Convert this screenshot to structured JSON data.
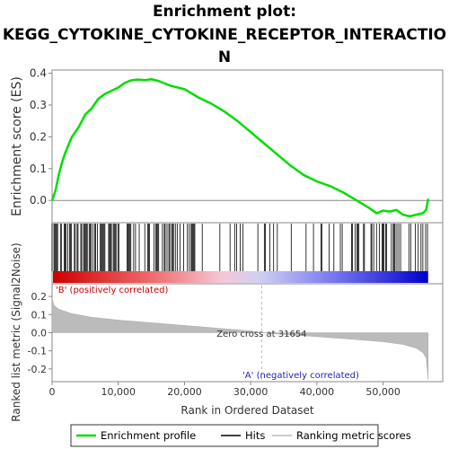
{
  "title_lines": [
    "Enrichment plot:",
    "KEGG_CYTOKINE_CYTOKINE_RECEPTOR_INTERACTIO",
    "N"
  ],
  "chart_data": {
    "type": "line",
    "series": [
      {
        "name": "Enrichment profile",
        "color": "#00dd00",
        "x": [
          0,
          500,
          1000,
          1500,
          2000,
          3000,
          4000,
          5000,
          6000,
          7000,
          8000,
          9000,
          10000,
          11000,
          12000,
          13000,
          14000,
          15000,
          16000,
          17000,
          18000,
          20000,
          22000,
          24000,
          26000,
          28000,
          30000,
          32000,
          34000,
          36000,
          38000,
          40000,
          42000,
          44000,
          46000,
          48000,
          49000,
          50000,
          51000,
          52000,
          53000,
          54000,
          55000,
          56000,
          56500,
          56800
        ],
        "y": [
          0.0,
          0.03,
          0.08,
          0.12,
          0.15,
          0.2,
          0.23,
          0.27,
          0.29,
          0.32,
          0.335,
          0.345,
          0.355,
          0.37,
          0.378,
          0.38,
          0.378,
          0.381,
          0.376,
          0.368,
          0.36,
          0.35,
          0.325,
          0.305,
          0.28,
          0.25,
          0.215,
          0.18,
          0.145,
          0.11,
          0.08,
          0.06,
          0.045,
          0.025,
          0.0,
          -0.025,
          -0.04,
          -0.032,
          -0.035,
          -0.03,
          -0.045,
          -0.05,
          -0.045,
          -0.04,
          -0.03,
          0.005
        ]
      }
    ],
    "ylabel": "Enrichment score (ES)",
    "ylim": [
      -0.07,
      0.41
    ],
    "yticks": [
      "0.4",
      "0.3",
      "0.2",
      "0.1",
      "0.0"
    ],
    "ranked_metric": {
      "ylabel": "Ranked list metric (Signal2Noise)",
      "ylim": [
        -0.27,
        0.27
      ],
      "yticks": [
        "0.2",
        "0.1",
        "0.0",
        "-0.1",
        "-0.2"
      ],
      "x": [
        0,
        300,
        1000,
        3000,
        6000,
        10000,
        15000,
        20000,
        25000,
        30000,
        31654,
        35000,
        40000,
        45000,
        50000,
        53000,
        55000,
        56000,
        56500,
        56800
      ],
      "y": [
        0.19,
        0.15,
        0.13,
        0.105,
        0.085,
        0.07,
        0.055,
        0.04,
        0.025,
        0.01,
        0.0,
        -0.01,
        -0.022,
        -0.035,
        -0.05,
        -0.065,
        -0.085,
        -0.11,
        -0.14,
        -0.26
      ]
    },
    "xlabel": "Rank in Ordered Dataset",
    "xlim": [
      0,
      59000
    ],
    "xticks": [
      "0",
      "10,000",
      "20,000",
      "30,000",
      "40,000",
      "50,000"
    ],
    "zero_cross_label": "Zero cross at 31654",
    "zero_cross": 31654,
    "pos_label": "'B' (positively correlated)",
    "neg_label": "'A' (negatively correlated)",
    "legend": {
      "placement": "bottom",
      "items": [
        {
          "label": "Enrichment profile",
          "color": "#00dd00"
        },
        {
          "label": "Hits",
          "color": "#000000"
        },
        {
          "label": "Ranking metric scores",
          "color": "#bbbbbb"
        }
      ]
    }
  }
}
